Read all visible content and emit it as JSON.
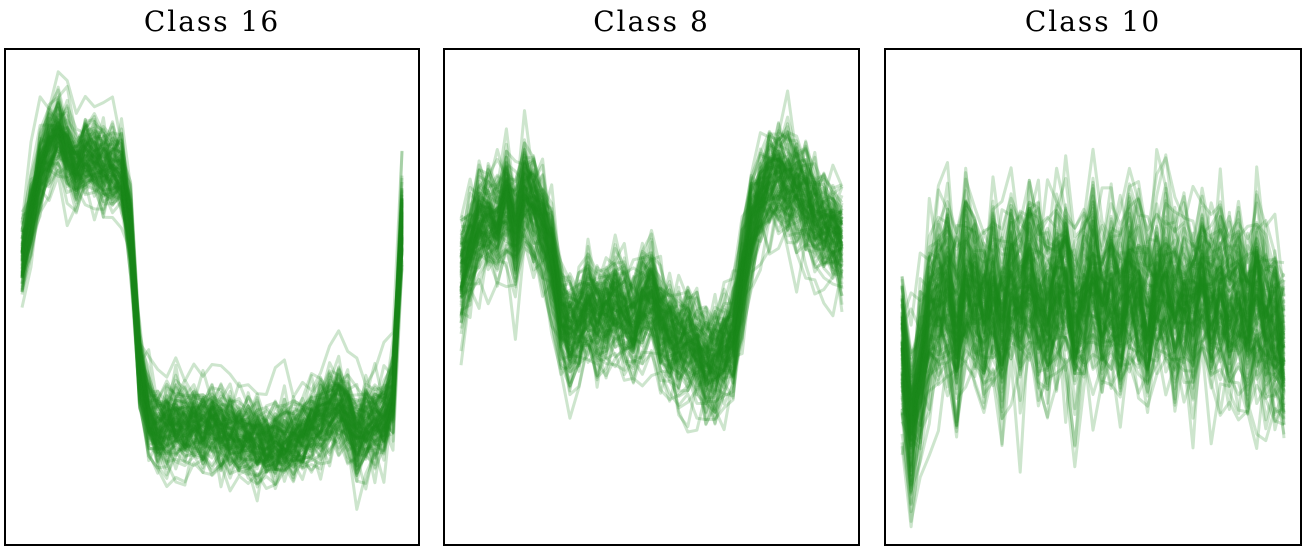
{
  "chart_data": [
    {
      "type": "line",
      "title": "Class 16",
      "xlabel": "",
      "ylabel": "",
      "grid": false,
      "legend": "none",
      "n_series": 110,
      "x": [
        0,
        1,
        2,
        3,
        4,
        5,
        6,
        7,
        8,
        9,
        10,
        11,
        12,
        13,
        14,
        15,
        16,
        17,
        18,
        19,
        20,
        21,
        22,
        23,
        24,
        25,
        26,
        27,
        28,
        29,
        30,
        31,
        32,
        33,
        34,
        35,
        36,
        37,
        38,
        39,
        40,
        41,
        42
      ],
      "ylim": [
        -3,
        3
      ],
      "mean_profile": [
        0.45,
        0.95,
        1.5,
        1.8,
        1.95,
        1.75,
        1.55,
        1.7,
        1.65,
        1.55,
        1.55,
        1.5,
        0.8,
        -0.9,
        -1.45,
        -1.65,
        -1.6,
        -1.55,
        -1.6,
        -1.55,
        -1.6,
        -1.55,
        -1.62,
        -1.65,
        -1.7,
        -1.72,
        -1.75,
        -1.8,
        -1.8,
        -1.8,
        -1.75,
        -1.7,
        -1.6,
        -1.5,
        -1.4,
        -1.3,
        -1.5,
        -1.7,
        -1.6,
        -1.55,
        -1.5,
        -1.2,
        0.9
      ],
      "spread": 0.35,
      "color": "#1a8a1a"
    },
    {
      "type": "line",
      "title": "Class 8",
      "xlabel": "",
      "ylabel": "",
      "grid": false,
      "legend": "none",
      "n_series": 110,
      "x": [
        0,
        1,
        2,
        3,
        4,
        5,
        6,
        7,
        8,
        9,
        10,
        11,
        12,
        13,
        14,
        15,
        16,
        17,
        18,
        19,
        20,
        21,
        22,
        23,
        24,
        25,
        26,
        27,
        28,
        29,
        30,
        31,
        32,
        33,
        34,
        35,
        36,
        37,
        38,
        39,
        40,
        41,
        42
      ],
      "ylim": [
        -3,
        3
      ],
      "mean_profile": [
        0.3,
        0.6,
        0.9,
        1.0,
        0.9,
        1.2,
        0.8,
        1.3,
        1.1,
        0.9,
        0.5,
        -0.2,
        -0.4,
        -0.3,
        -0.1,
        -0.25,
        -0.15,
        -0.05,
        -0.2,
        -0.35,
        -0.1,
        0.0,
        -0.3,
        -0.45,
        -0.55,
        -0.5,
        -0.6,
        -0.8,
        -0.75,
        -0.6,
        -0.5,
        0.2,
        0.9,
        1.2,
        1.4,
        1.5,
        1.35,
        1.3,
        1.2,
        1.0,
        0.9,
        0.8,
        0.7
      ],
      "spread": 0.45,
      "color": "#1a8a1a"
    },
    {
      "type": "line",
      "title": "Class 10",
      "xlabel": "",
      "ylabel": "",
      "grid": false,
      "legend": "none",
      "n_series": 110,
      "x": [
        0,
        1,
        2,
        3,
        4,
        5,
        6,
        7,
        8,
        9,
        10,
        11,
        12,
        13,
        14,
        15,
        16,
        17,
        18,
        19,
        20,
        21,
        22,
        23,
        24,
        25,
        26,
        27,
        28,
        29,
        30,
        31,
        32,
        33,
        34,
        35,
        36,
        37,
        38,
        39,
        40,
        41,
        42
      ],
      "ylim": [
        -3,
        3
      ],
      "mean_profile": [
        -0.6,
        -1.6,
        -0.9,
        -0.3,
        0.0,
        0.1,
        -0.4,
        0.2,
        0.0,
        -0.2,
        0.1,
        -0.3,
        0.2,
        -0.1,
        0.3,
        0.0,
        -0.2,
        0.1,
        0.2,
        -0.3,
        0.0,
        0.3,
        -0.1,
        0.1,
        -0.2,
        0.2,
        0.0,
        -0.3,
        0.1,
        0.2,
        -0.1,
        0.0,
        -0.2,
        0.3,
        -0.1,
        0.1,
        -0.2,
        0.0,
        -0.3,
        0.1,
        -0.2,
        -0.4,
        -0.7
      ],
      "spread": 0.75,
      "color": "#1a8a1a"
    }
  ]
}
